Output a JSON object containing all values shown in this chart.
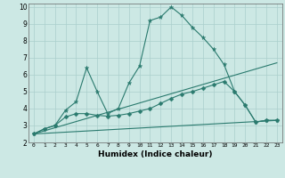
{
  "title": "",
  "xlabel": "Humidex (Indice chaleur)",
  "bg_color": "#cce8e4",
  "grid_color": "#aacfcc",
  "line_color": "#2a7a6e",
  "xlim": [
    -0.5,
    23.5
  ],
  "ylim": [
    2,
    10.2
  ],
  "yticks": [
    2,
    3,
    4,
    5,
    6,
    7,
    8,
    9,
    10
  ],
  "xticks": [
    0,
    1,
    2,
    3,
    4,
    5,
    6,
    7,
    8,
    9,
    10,
    11,
    12,
    13,
    14,
    15,
    16,
    17,
    18,
    19,
    20,
    21,
    22,
    23
  ],
  "series": [
    {
      "x": [
        0,
        1,
        2,
        3,
        4,
        5,
        6,
        7,
        8,
        9,
        10,
        11,
        12,
        13,
        14,
        15,
        16,
        17,
        18,
        19,
        20,
        21,
        22,
        23
      ],
      "y": [
        2.5,
        2.8,
        3.0,
        3.9,
        4.4,
        6.4,
        5.0,
        3.7,
        4.0,
        5.5,
        6.5,
        9.2,
        9.4,
        10.0,
        9.5,
        8.8,
        8.2,
        7.5,
        6.6,
        5.0,
        4.2,
        3.2,
        3.3,
        3.3
      ],
      "marker": "*",
      "markersize": 3.5,
      "linewidth": 0.8
    },
    {
      "x": [
        0,
        1,
        2,
        3,
        4,
        5,
        6,
        7,
        8,
        9,
        10,
        11,
        12,
        13,
        14,
        15,
        16,
        17,
        18,
        19,
        20,
        21,
        22,
        23
      ],
      "y": [
        2.5,
        2.8,
        3.0,
        3.5,
        3.7,
        3.7,
        3.6,
        3.55,
        3.6,
        3.7,
        3.85,
        4.0,
        4.3,
        4.6,
        4.85,
        5.0,
        5.2,
        5.4,
        5.6,
        5.0,
        4.2,
        3.2,
        3.3,
        3.3
      ],
      "marker": "D",
      "markersize": 2.5,
      "linewidth": 0.8
    },
    {
      "x": [
        0,
        23
      ],
      "y": [
        2.5,
        6.7
      ],
      "marker": null,
      "markersize": 0,
      "linewidth": 0.8
    },
    {
      "x": [
        0,
        23
      ],
      "y": [
        2.5,
        3.3
      ],
      "marker": null,
      "markersize": 0,
      "linewidth": 0.8
    }
  ]
}
